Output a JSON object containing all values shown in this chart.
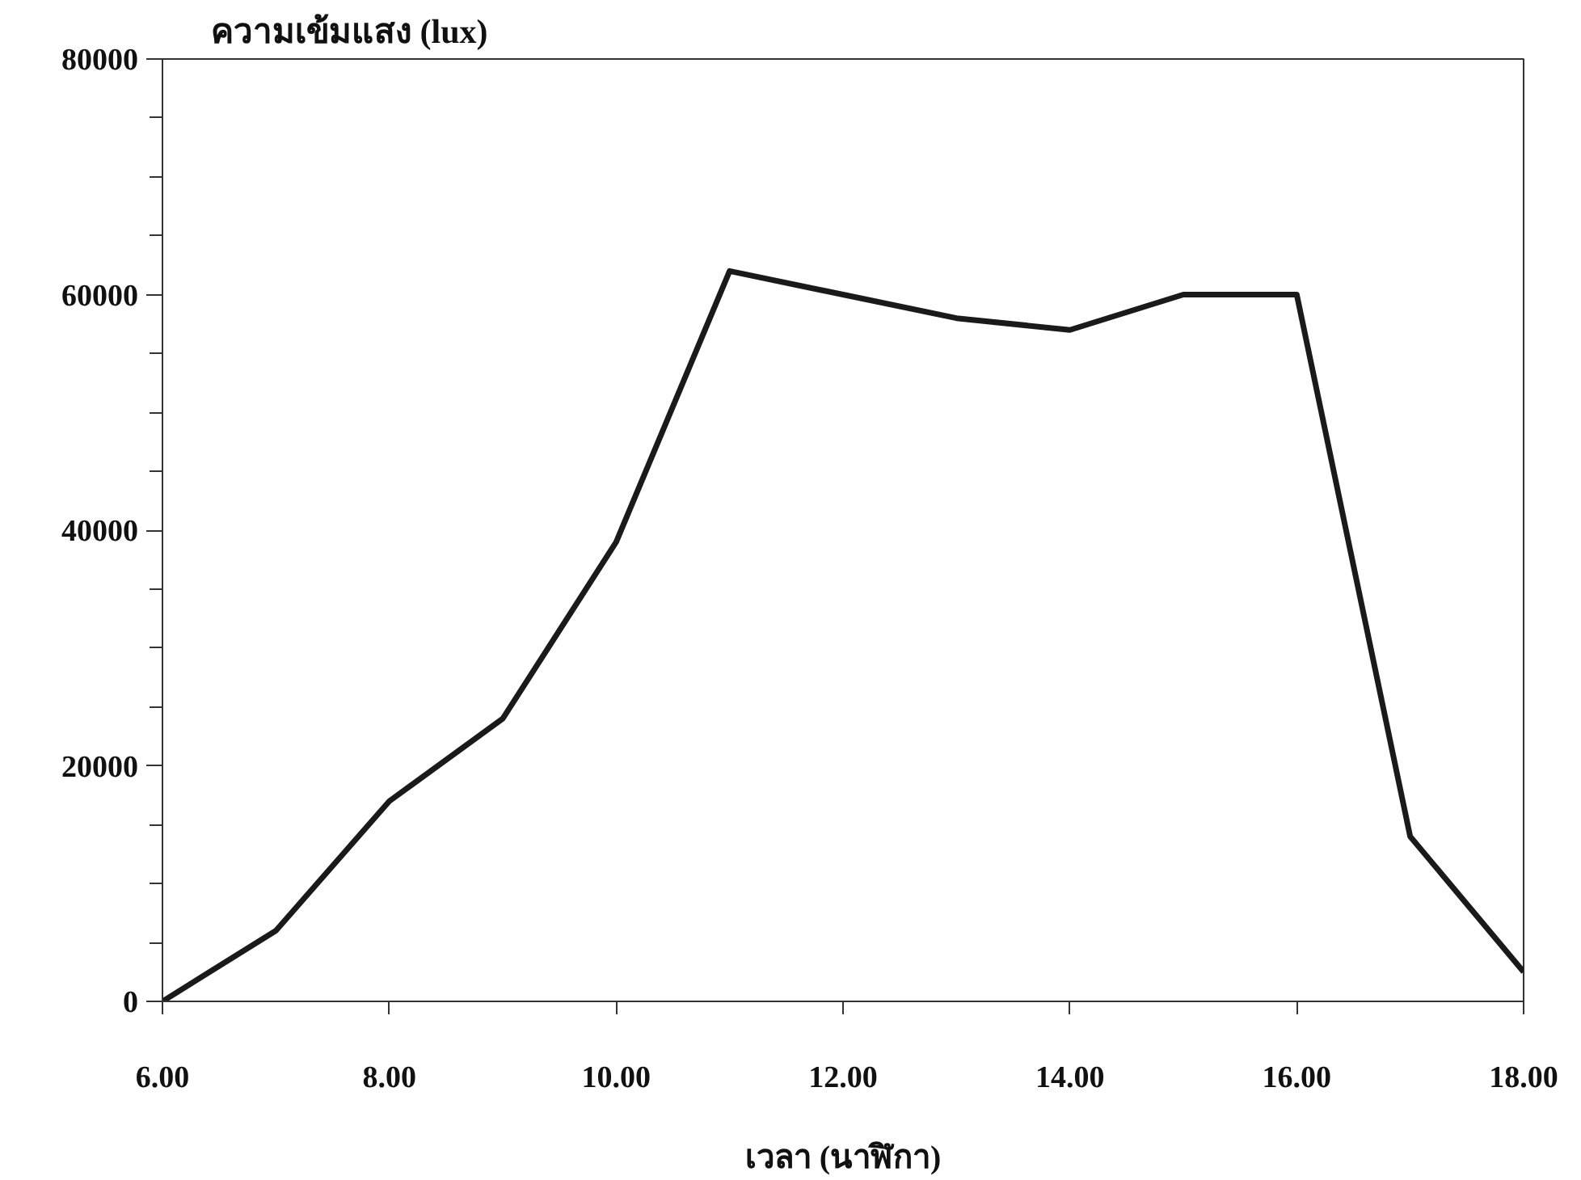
{
  "chart_data": {
    "type": "line",
    "ylabel": "ความเข้มแสง (lux)",
    "xlabel": "เวลา (นาฬิกา)",
    "x": [
      6,
      7,
      8,
      9,
      10,
      11,
      12,
      13,
      14,
      15,
      16,
      17,
      18
    ],
    "series": [
      {
        "color": "#1a1a1a",
        "values": [
          0,
          6000,
          17000,
          24000,
          39000,
          62000,
          60000,
          58000,
          57000,
          60000,
          60000,
          14000,
          2500
        ]
      }
    ],
    "xlim": [
      6,
      18
    ],
    "ylim": [
      0,
      80000
    ],
    "xticks": [
      {
        "value": 6,
        "label": "6.00"
      },
      {
        "value": 8,
        "label": "8.00"
      },
      {
        "value": 10,
        "label": "10.00"
      },
      {
        "value": 12,
        "label": "12.00"
      },
      {
        "value": 14,
        "label": "14.00"
      },
      {
        "value": 16,
        "label": "16.00"
      },
      {
        "value": 18,
        "label": "18.00"
      }
    ],
    "yticks": [
      0,
      {
        "value": 5000,
        "label": null
      },
      {
        "value": 10000,
        "label": null
      },
      {
        "value": 15000,
        "label": null
      },
      20000,
      {
        "value": 25000,
        "label": null
      },
      {
        "value": 30000,
        "label": null
      },
      {
        "value": 35000,
        "label": null
      },
      40000,
      {
        "value": 45000,
        "label": null
      },
      {
        "value": 50000,
        "label": null
      },
      {
        "value": 55000,
        "label": null
      },
      60000,
      {
        "value": 65000,
        "label": null
      },
      {
        "value": 70000,
        "label": null
      },
      {
        "value": 75000,
        "label": null
      },
      80000
    ],
    "grid": false,
    "marker": "none",
    "line_style": "solid"
  }
}
